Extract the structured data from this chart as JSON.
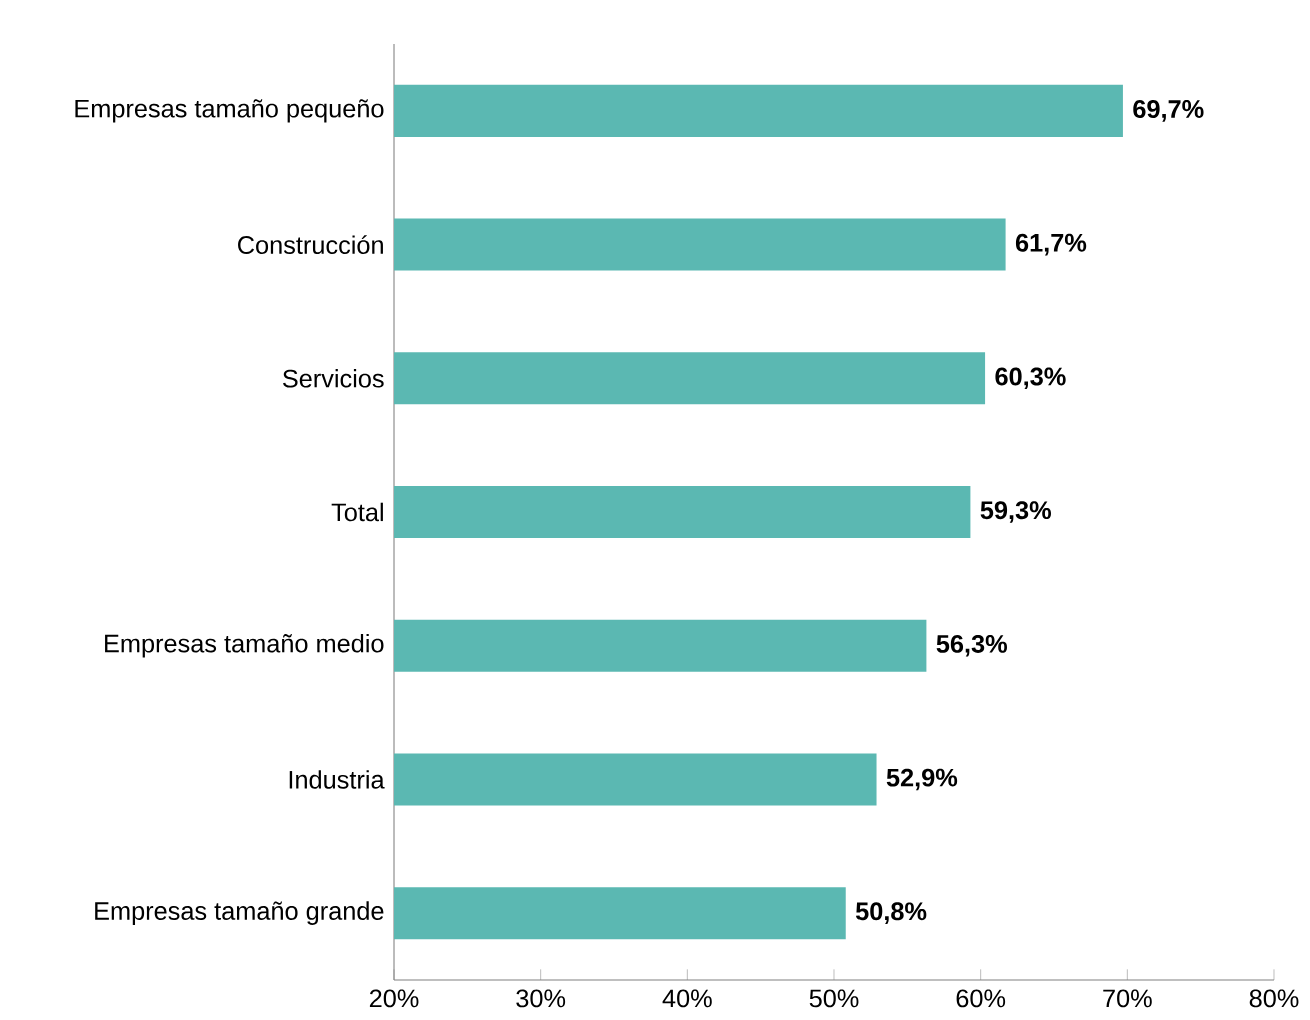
{
  "chart_data": {
    "type": "bar",
    "orientation": "horizontal",
    "categories": [
      "Empresas tamaño pequeño",
      "Construcción",
      "Servicios",
      "Total",
      "Empresas tamaño medio",
      "Industria",
      "Empresas tamaño grande"
    ],
    "values": [
      69.7,
      61.7,
      60.3,
      59.3,
      56.3,
      52.9,
      50.8
    ],
    "value_labels": [
      "69,7%",
      "61,7%",
      "60,3%",
      "59,3%",
      "56,3%",
      "52,9%",
      "50,8%"
    ],
    "color": "#5bb8b2",
    "xlim": [
      20,
      80
    ],
    "xticks": [
      {
        "value": 20,
        "label": "20%"
      },
      {
        "value": 30,
        "label": "30%"
      },
      {
        "value": 40,
        "label": "40%"
      },
      {
        "value": 50,
        "label": "50%"
      },
      {
        "value": 60,
        "label": "60%"
      },
      {
        "value": 70,
        "label": "70%"
      },
      {
        "value": 80,
        "label": "80%"
      }
    ],
    "grid": false
  }
}
